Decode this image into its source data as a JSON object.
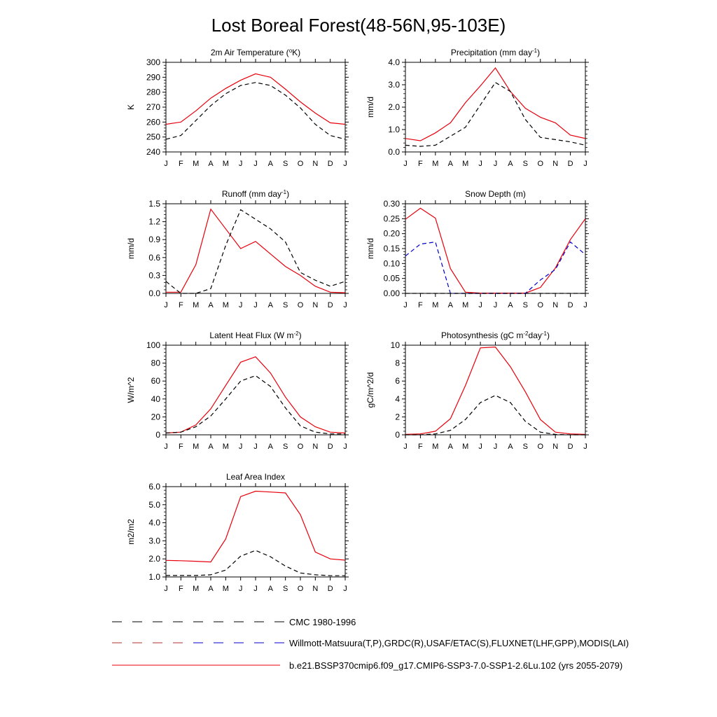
{
  "figure": {
    "title": "Lost Boreal Forest(48-56N,95-103E)",
    "months": [
      "J",
      "F",
      "M",
      "A",
      "M",
      "J",
      "J",
      "A",
      "S",
      "O",
      "N",
      "D",
      "J"
    ],
    "colors": {
      "model": "#e8000b",
      "cmc": "#000000",
      "obs": "#0000cc",
      "obs_alt": "#000000"
    }
  },
  "legend": [
    {
      "label": "CMC 1980-1996",
      "style": "dash",
      "colors": [
        "#000000"
      ]
    },
    {
      "label": "Willmott-Matsuura(T,P),GRDC(R),USAF/ETAC(S),FLUXNET(LHF,GPP),MODIS(LAI)",
      "style": "dash",
      "colors": [
        "#000000",
        "#0000cc"
      ]
    },
    {
      "label": "b.e21.BSSP370cmip6.f09_g17.CMIP6-SSP3-7.0-SSP1-2.6Lu.102 (yrs 2055-2079)",
      "style": "solid",
      "colors": [
        "#e8000b"
      ]
    }
  ],
  "chart_data": [
    {
      "type": "line",
      "title": "2m Air Temperature (",
      "title_sup": "o",
      "title_tail": "K)",
      "ylabel": "K",
      "ylim": [
        240,
        300
      ],
      "yticks": [
        "240",
        "250",
        "260",
        "270",
        "280",
        "290",
        "300"
      ],
      "x": [
        "J",
        "F",
        "M",
        "A",
        "M",
        "J",
        "J",
        "A",
        "S",
        "O",
        "N",
        "D",
        "J"
      ],
      "series": [
        {
          "values": [
            258.5,
            260,
            267.5,
            276,
            282.5,
            288,
            292.3,
            290,
            282,
            273.5,
            266,
            259.5,
            258.5
          ],
          "color": "#e8000b",
          "dash": false
        },
        {
          "values": [
            248.5,
            251,
            261,
            271,
            279,
            284.5,
            286.5,
            284.5,
            278,
            269.5,
            258.5,
            251,
            248.5
          ],
          "color": "#000000",
          "dash": true
        }
      ]
    },
    {
      "type": "line",
      "title": "Precipitation (mm day",
      "title_sup": "-1",
      "title_tail": ")",
      "ylabel": "mm/d",
      "ylim": [
        0,
        4
      ],
      "yticks": [
        "0.0",
        "1.0",
        "2.0",
        "3.0",
        "4.0"
      ],
      "x": [
        "J",
        "F",
        "M",
        "A",
        "M",
        "J",
        "J",
        "A",
        "S",
        "O",
        "N",
        "D",
        "J"
      ],
      "series": [
        {
          "values": [
            0.6,
            0.5,
            0.85,
            1.3,
            2.2,
            2.95,
            3.75,
            2.7,
            1.95,
            1.55,
            1.3,
            0.75,
            0.6
          ],
          "color": "#e8000b",
          "dash": false
        },
        {
          "values": [
            0.3,
            0.25,
            0.3,
            0.7,
            1.1,
            2.1,
            3.1,
            2.7,
            1.45,
            0.65,
            0.55,
            0.45,
            0.3
          ],
          "color": "#000000",
          "dash": true
        }
      ]
    },
    {
      "type": "line",
      "title": "Runoff (mm day",
      "title_sup": "-1",
      "title_tail": ")",
      "ylabel": "mm/d",
      "ylim": [
        0,
        1.5
      ],
      "yticks": [
        "0.0",
        "0.3",
        "0.6",
        "0.9",
        "1.2",
        "1.5"
      ],
      "x": [
        "J",
        "F",
        "M",
        "A",
        "M",
        "J",
        "J",
        "A",
        "S",
        "O",
        "N",
        "D",
        "J"
      ],
      "series": [
        {
          "values": [
            0.02,
            0.02,
            0.48,
            1.41,
            1.08,
            0.75,
            0.87,
            0.66,
            0.45,
            0.3,
            0.12,
            0.02,
            0.01
          ],
          "color": "#e8000b",
          "dash": false
        },
        {
          "values": [
            0.2,
            0.0,
            0.0,
            0.08,
            0.8,
            1.4,
            1.24,
            1.08,
            0.86,
            0.35,
            0.22,
            0.12,
            0.2
          ],
          "color": "#000000",
          "dash": true
        }
      ]
    },
    {
      "type": "line",
      "title": "Snow Depth (m)",
      "title_sup": "",
      "title_tail": "",
      "ylabel": "mm/d",
      "ylim": [
        0,
        0.3
      ],
      "yticks": [
        "0.00",
        "0.05",
        "0.10",
        "0.15",
        "0.20",
        "0.25",
        "0.30"
      ],
      "x": [
        "J",
        "F",
        "M",
        "A",
        "M",
        "J",
        "J",
        "A",
        "S",
        "O",
        "N",
        "D",
        "J"
      ],
      "series": [
        {
          "values": [
            0.248,
            0.285,
            0.252,
            0.083,
            0.004,
            0.001,
            0.001,
            0.001,
            0.001,
            0.02,
            0.085,
            0.18,
            0.25
          ],
          "color": "#e8000b",
          "dash": false
        },
        {
          "values": [
            0.125,
            0.165,
            0.172,
            0.0,
            0.0,
            0.0,
            0.0,
            0.0,
            0.0,
            0.045,
            0.08,
            0.172,
            0.13
          ],
          "color": "#0000cc",
          "dash": true
        },
        {
          "values": [
            0.0,
            0.0,
            0.0,
            0.0,
            0.0,
            0.0,
            0.0,
            0.0,
            0.0,
            0.0,
            0.0,
            0.0,
            0.0
          ],
          "color": "#000000",
          "dash": true
        }
      ]
    },
    {
      "type": "line",
      "title": "Latent Heat Flux (W m",
      "title_sup": "-2",
      "title_tail": ")",
      "ylabel": "W/m^2",
      "ylim": [
        0,
        100
      ],
      "yticks": [
        "0",
        "20",
        "40",
        "60",
        "80",
        "100"
      ],
      "x": [
        "J",
        "F",
        "M",
        "A",
        "M",
        "J",
        "J",
        "A",
        "S",
        "O",
        "N",
        "D",
        "J"
      ],
      "series": [
        {
          "values": [
            2,
            3,
            11,
            29,
            55,
            81,
            87,
            69,
            42,
            20,
            9,
            3,
            2
          ],
          "color": "#e8000b",
          "dash": false
        },
        {
          "values": [
            2,
            3,
            9,
            21,
            40,
            60,
            66,
            54,
            30,
            10,
            3,
            1,
            1
          ],
          "color": "#000000",
          "dash": true
        }
      ]
    },
    {
      "type": "line",
      "title": "Photosynthesis (gC m",
      "title_sup": "-2",
      "title_mid": "day",
      "title_sup2": "-1",
      "title_tail": ")",
      "ylabel": "gC/m^2/d",
      "ylim": [
        0,
        10
      ],
      "yticks": [
        "0",
        "2",
        "4",
        "6",
        "8",
        "10"
      ],
      "x": [
        "J",
        "F",
        "M",
        "A",
        "M",
        "J",
        "J",
        "A",
        "S",
        "O",
        "N",
        "D",
        "J"
      ],
      "series": [
        {
          "values": [
            0.05,
            0.1,
            0.4,
            1.8,
            5.5,
            9.7,
            9.8,
            7.6,
            4.8,
            1.7,
            0.3,
            0.1,
            0.05
          ],
          "color": "#e8000b",
          "dash": false
        },
        {
          "values": [
            0.0,
            0.0,
            0.1,
            0.5,
            1.7,
            3.6,
            4.4,
            3.6,
            1.5,
            0.3,
            0.05,
            0.0,
            0.0
          ],
          "color": "#000000",
          "dash": true
        }
      ]
    },
    {
      "type": "line",
      "title": "Leaf Area Index",
      "title_sup": "",
      "title_tail": "",
      "ylabel": "m2/m2",
      "ylim": [
        1,
        6
      ],
      "yticks": [
        "1.0",
        "2.0",
        "3.0",
        "4.0",
        "5.0",
        "6.0"
      ],
      "x": [
        "J",
        "F",
        "M",
        "A",
        "M",
        "J",
        "J",
        "A",
        "S",
        "O",
        "N",
        "D",
        "J"
      ],
      "series": [
        {
          "values": [
            1.92,
            1.9,
            1.87,
            1.83,
            3.1,
            5.45,
            5.75,
            5.7,
            5.65,
            4.45,
            2.38,
            2.0,
            1.93
          ],
          "color": "#e8000b",
          "dash": false
        },
        {
          "values": [
            1.08,
            1.08,
            1.08,
            1.12,
            1.38,
            2.15,
            2.47,
            2.12,
            1.6,
            1.22,
            1.12,
            1.07,
            1.07
          ],
          "color": "#000000",
          "dash": true
        }
      ]
    }
  ]
}
